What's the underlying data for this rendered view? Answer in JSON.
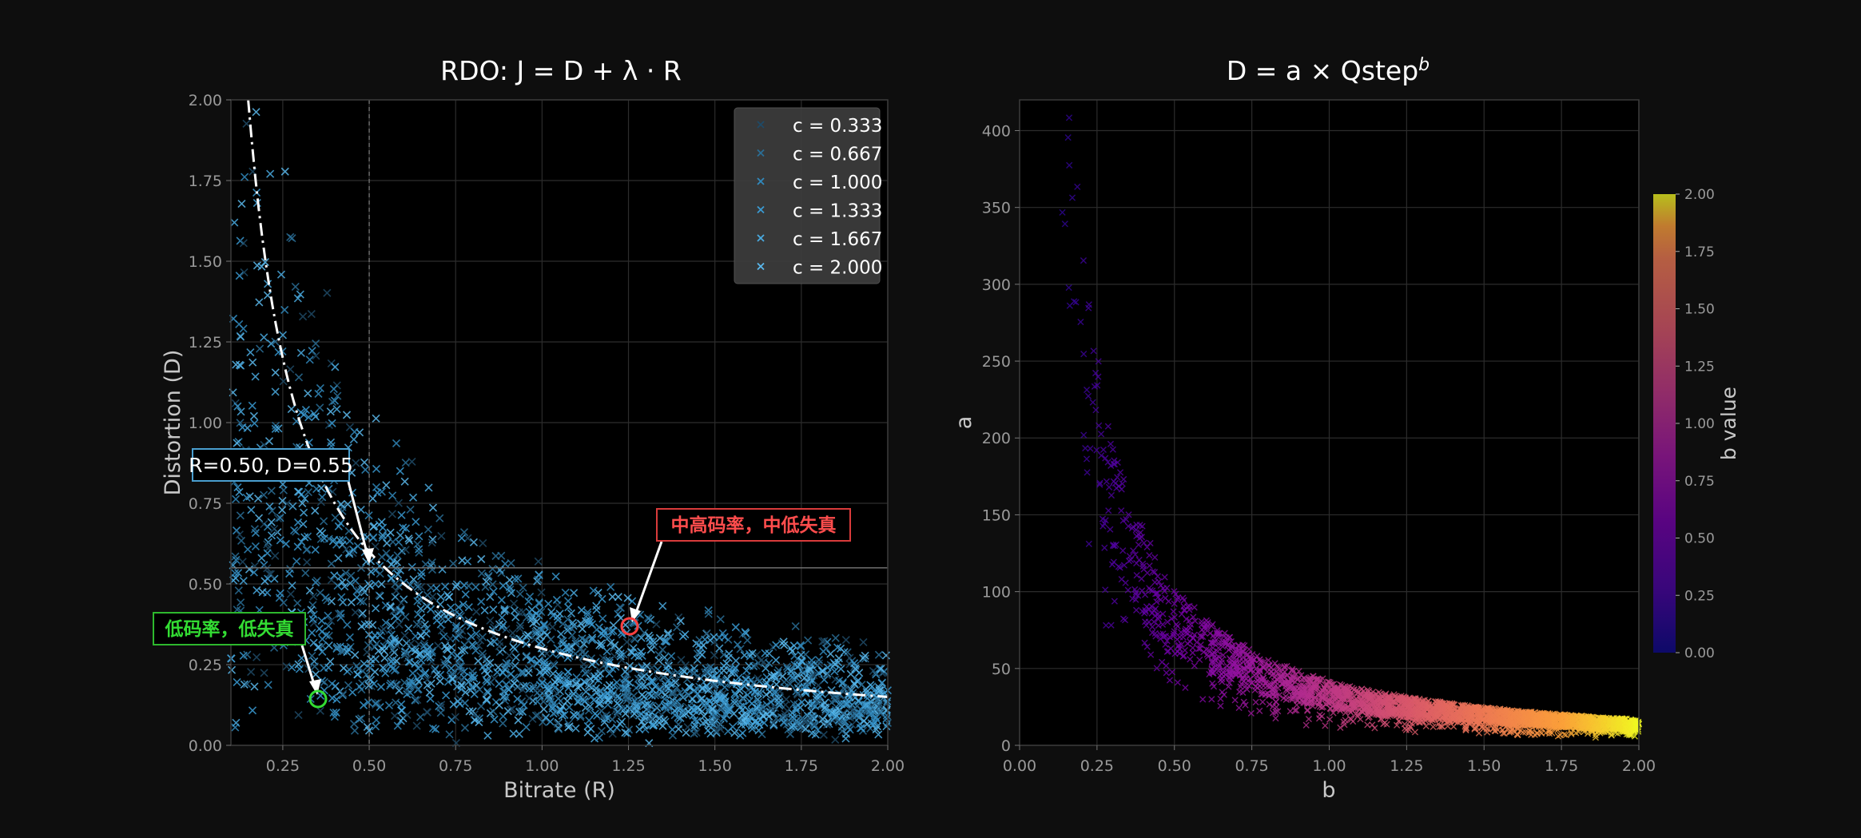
{
  "chart_data": [
    {
      "type": "scatter",
      "title": "RDO: J = D + λ · R",
      "xlabel": "Bitrate (R)",
      "ylabel": "Distortion (D)",
      "xlim": [
        0.1,
        2.0
      ],
      "ylim": [
        0,
        2.0
      ],
      "xticks": [
        "0.25",
        "0.50",
        "0.75",
        "1.00",
        "1.25",
        "1.50",
        "1.75",
        "2.00"
      ],
      "yticks": [
        "0.00",
        "0.25",
        "0.50",
        "0.75",
        "1.00",
        "1.25",
        "1.50",
        "1.75",
        "2.00"
      ],
      "grid": true,
      "legend_position": "top-right",
      "series": [
        {
          "name": "c = 0.333",
          "color": "#1f4a66"
        },
        {
          "name": "c = 0.667",
          "color": "#2a6e96"
        },
        {
          "name": "c = 1.000",
          "color": "#3189bd"
        },
        {
          "name": "c = 1.333",
          "color": "#3a9ad2"
        },
        {
          "name": "c = 1.667",
          "color": "#4aaae0"
        },
        {
          "name": "c = 2.000",
          "color": "#5ab8ec"
        }
      ],
      "curve": {
        "equation": "D = 0.3 / R",
        "style": "dash-dot",
        "color": "#ffffff"
      },
      "reference_lines": {
        "x": 0.5,
        "y": 0.55
      },
      "annotations": [
        {
          "text": "R=0.50, D=0.55",
          "x": 0.5,
          "y": 0.55,
          "color": "#ffffff",
          "border": "#4a9fd0"
        },
        {
          "text": "中高码率，中低失真",
          "x": 1.25,
          "y": 0.37,
          "color": "#ff4d4d",
          "border": "#d93b3b"
        },
        {
          "text": "低码率，低失真",
          "x": 0.35,
          "y": 0.15,
          "color": "#33dd33",
          "border": "#2db82d"
        }
      ]
    },
    {
      "type": "scatter",
      "title_main": "D = a × Qstep",
      "title_sup": "b",
      "xlabel": "b",
      "ylabel": "a",
      "xlim": [
        0,
        2.0
      ],
      "ylim": [
        0,
        420
      ],
      "xticks": [
        "0.00",
        "0.25",
        "0.50",
        "0.75",
        "1.00",
        "1.25",
        "1.50",
        "1.75",
        "2.00"
      ],
      "yticks": [
        "0",
        "50",
        "100",
        "150",
        "200",
        "250",
        "300",
        "350",
        "400"
      ],
      "grid": true,
      "trend": "a ≈ 35 / (b + 0.1)^1.3 (approx.)",
      "colorbar": {
        "label": "b value",
        "range": [
          0,
          2.0
        ],
        "ticks": [
          "0.00",
          "0.25",
          "0.50",
          "0.75",
          "1.00",
          "1.25",
          "1.50",
          "1.75",
          "2.00"
        ],
        "colormap": "plasma"
      }
    }
  ]
}
